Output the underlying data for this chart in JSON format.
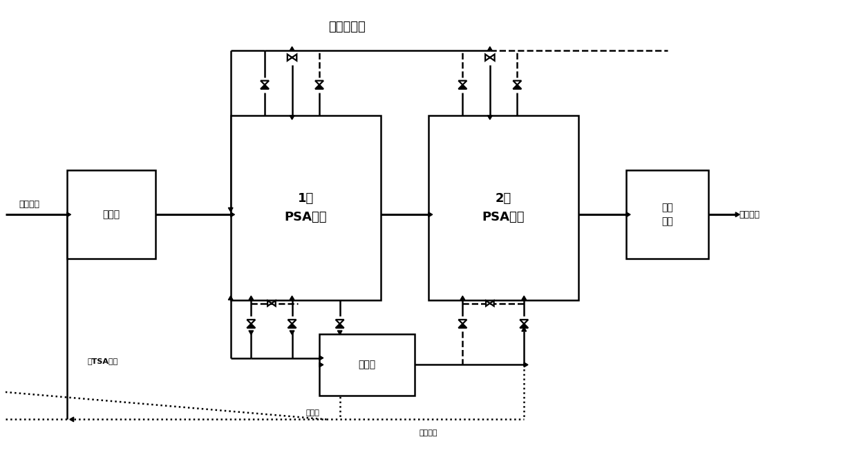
{
  "title": "超高纯氢气",
  "label_zhongjian": "中间气体",
  "label_compressor1": "压缩机",
  "label_psa1": "1段\nPSA提氢",
  "label_psa2": "2段\nPSA提氢",
  "label_purifier": "氢气\n纯化",
  "label_h2product": "氢气产品",
  "label_compressor2": "压缩机",
  "label_jieqi": "解吸气",
  "label_tsapurify": "去TSA净化",
  "label_regenerate": "再生尾气",
  "bg_color": "#ffffff"
}
